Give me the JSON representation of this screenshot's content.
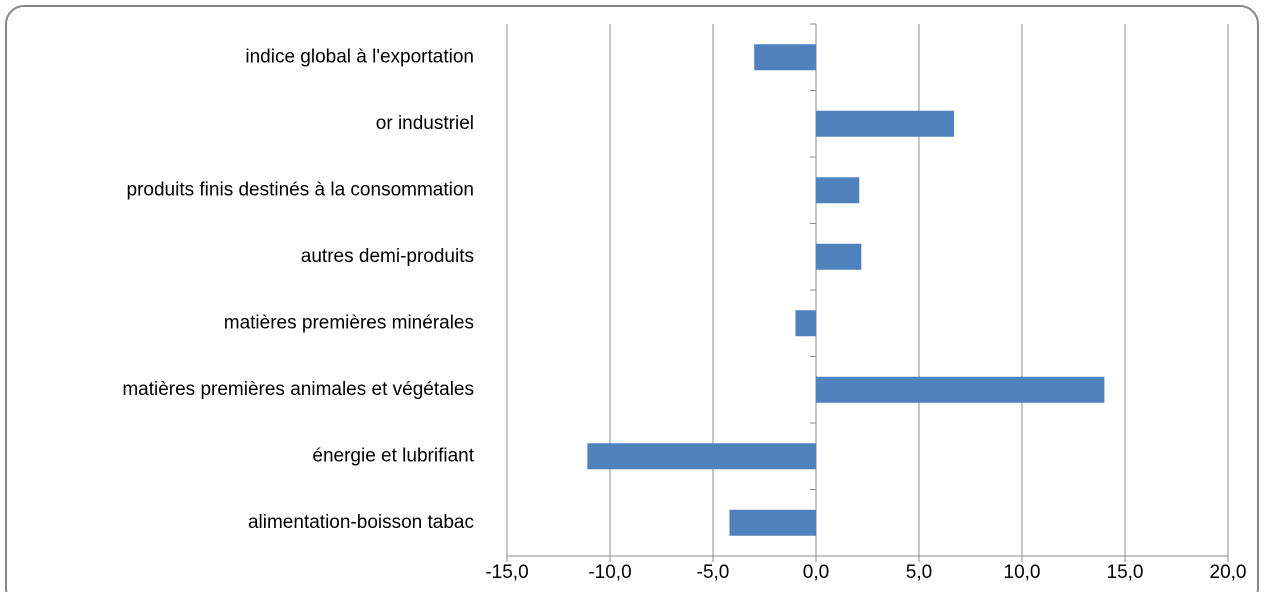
{
  "chart_data": {
    "type": "bar",
    "orientation": "horizontal",
    "categories": [
      "alimentation-boisson tabac",
      "énergie et lubrifiant",
      "matières premières animales et végétales",
      "matières premières minérales",
      "autres demi-produits",
      "produits finis destinés à la consommation",
      "or industriel",
      "indice global à l'exportation"
    ],
    "values": [
      -4.2,
      -11.1,
      14.0,
      -1.0,
      2.2,
      2.1,
      6.7,
      -3.0
    ],
    "color": "#4f81bd",
    "xlim": [
      -15,
      20
    ],
    "xticks": [
      {
        "value": -15,
        "label": "-15,0"
      },
      {
        "value": -10,
        "label": "-10,0"
      },
      {
        "value": -5,
        "label": "-5,0"
      },
      {
        "value": 0,
        "label": "0,0"
      },
      {
        "value": 5,
        "label": "5,0"
      },
      {
        "value": 10,
        "label": "10,0"
      },
      {
        "value": 15,
        "label": "15,0"
      },
      {
        "value": 20,
        "label": "20,0"
      }
    ],
    "grid": true
  }
}
